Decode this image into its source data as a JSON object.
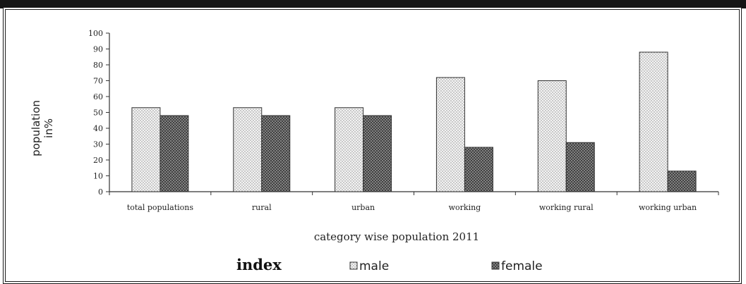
{
  "chart_data": {
    "type": "bar",
    "categories": [
      "total populations",
      "rural",
      "urban",
      "working",
      "working rural",
      "working urban"
    ],
    "series": [
      {
        "name": "male",
        "values": [
          53,
          53,
          53,
          72,
          70,
          88
        ],
        "color": "#e8e8e8",
        "pattern": "dots"
      },
      {
        "name": "female",
        "values": [
          48,
          48,
          48,
          28,
          31,
          13
        ],
        "color": "#5a5a5a",
        "pattern": "crosshatch"
      }
    ],
    "title": "",
    "xlabel": "category wise population 2011",
    "ylabel_lines": [
      "population",
      "in%"
    ],
    "ylim": [
      0,
      100
    ],
    "yticks": [
      0,
      10,
      20,
      30,
      40,
      50,
      60,
      70,
      80,
      90,
      100
    ],
    "grid": false,
    "legend": {
      "title": "index",
      "placement": "bottom"
    }
  }
}
